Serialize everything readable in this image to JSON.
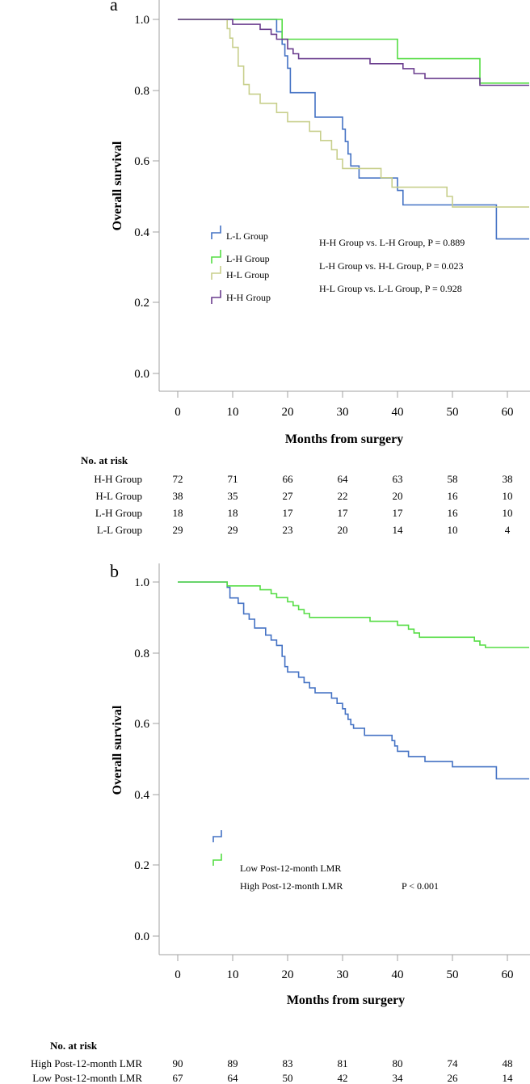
{
  "chart_data": [
    {
      "type": "line",
      "panel_label": "a",
      "xlabel": "Months from surgery",
      "ylabel": "Overall survival",
      "xlim": [
        -5,
        64
      ],
      "ylim": [
        -0.05,
        1.05
      ],
      "x_ticks": [
        0,
        10,
        20,
        30,
        40,
        50,
        60
      ],
      "x_tick_labels": [
        "0",
        "10",
        "20",
        "30",
        "40",
        "50",
        "60"
      ],
      "y_ticks": [
        0.0,
        0.2,
        0.4,
        0.6,
        0.8,
        1.0
      ],
      "y_tick_labels": [
        "0.0",
        "0.2",
        "0.4",
        "0.6",
        "0.8",
        "1.0"
      ],
      "series": [
        {
          "name": "L-L Group",
          "color": "#4472c4",
          "steps": [
            [
              0,
              1.0
            ],
            [
              18,
              0.965
            ],
            [
              19,
              0.93
            ],
            [
              19.5,
              0.897
            ],
            [
              20,
              0.862
            ],
            [
              20.5,
              0.793
            ],
            [
              25,
              0.724
            ],
            [
              30,
              0.69
            ],
            [
              30.5,
              0.655
            ],
            [
              31,
              0.62
            ],
            [
              31.5,
              0.586
            ],
            [
              33,
              0.552
            ],
            [
              40,
              0.517
            ],
            [
              41,
              0.476
            ],
            [
              58,
              0.38
            ],
            [
              64,
              0.38
            ]
          ]
        },
        {
          "name": "L-H Group",
          "color": "#55dd44",
          "steps": [
            [
              0,
              1.0
            ],
            [
              19,
              0.944
            ],
            [
              40,
              0.889
            ],
            [
              55,
              0.82
            ],
            [
              64,
              0.82
            ]
          ]
        },
        {
          "name": "H-L Group",
          "color": "#c8cf8c",
          "steps": [
            [
              0,
              1.0
            ],
            [
              9,
              0.974
            ],
            [
              9.5,
              0.947
            ],
            [
              10,
              0.921
            ],
            [
              11,
              0.868
            ],
            [
              12,
              0.816
            ],
            [
              13,
              0.789
            ],
            [
              15,
              0.763
            ],
            [
              18,
              0.737
            ],
            [
              20,
              0.711
            ],
            [
              24,
              0.684
            ],
            [
              26,
              0.658
            ],
            [
              28,
              0.632
            ],
            [
              29,
              0.605
            ],
            [
              30,
              0.579
            ],
            [
              37,
              0.553
            ],
            [
              39,
              0.526
            ],
            [
              41,
              0.526
            ],
            [
              49,
              0.5
            ],
            [
              50,
              0.47
            ],
            [
              64,
              0.47
            ]
          ]
        },
        {
          "name": "H-H Group",
          "color": "#6a3d8e",
          "steps": [
            [
              0,
              1.0
            ],
            [
              10,
              0.986
            ],
            [
              15,
              0.972
            ],
            [
              17,
              0.958
            ],
            [
              18,
              0.944
            ],
            [
              20,
              0.917
            ],
            [
              21,
              0.903
            ],
            [
              22,
              0.889
            ],
            [
              35,
              0.875
            ],
            [
              41,
              0.861
            ],
            [
              43,
              0.847
            ],
            [
              45,
              0.833
            ],
            [
              55,
              0.814
            ],
            [
              64,
              0.814
            ]
          ]
        }
      ],
      "legend": [
        "L-L Group",
        "L-H Group",
        "H-L Group",
        "H-H Group"
      ],
      "annotations": [
        "H-H Group vs. L-H Group, P = 0.889",
        "L-H Group vs. H-L Group, P = 0.023",
        "H-L Group vs. L-L Group, P = 0.928"
      ],
      "risk_table": {
        "title": "No. at risk",
        "rows": [
          {
            "label": "H-H Group",
            "values": [
              "72",
              "71",
              "66",
              "64",
              "63",
              "58",
              "38"
            ]
          },
          {
            "label": "H-L Group",
            "values": [
              "38",
              "35",
              "27",
              "22",
              "20",
              "16",
              "10"
            ]
          },
          {
            "label": "L-H Group",
            "values": [
              "18",
              "18",
              "17",
              "17",
              "17",
              "16",
              "10"
            ]
          },
          {
            "label": "L-L Group",
            "values": [
              "29",
              "29",
              "23",
              "20",
              "14",
              "10",
              "4"
            ]
          }
        ]
      }
    },
    {
      "type": "line",
      "panel_label": "b",
      "xlabel": "Months from surgery",
      "ylabel": "Overall survival",
      "xlim": [
        -5,
        64
      ],
      "ylim": [
        -0.05,
        1.05
      ],
      "x_ticks": [
        0,
        10,
        20,
        30,
        40,
        50,
        60
      ],
      "x_tick_labels": [
        "0",
        "10",
        "20",
        "30",
        "40",
        "50",
        "60"
      ],
      "y_ticks": [
        0.0,
        0.2,
        0.4,
        0.6,
        0.8,
        1.0
      ],
      "y_tick_labels": [
        "0.0",
        "0.2",
        "0.4",
        "0.6",
        "0.8",
        "1.0"
      ],
      "series": [
        {
          "name": "Low Post-12-month  LMR",
          "color": "#4472c4",
          "steps": [
            [
              0,
              1.0
            ],
            [
              9,
              0.985
            ],
            [
              9.5,
              0.955
            ],
            [
              11,
              0.94
            ],
            [
              12,
              0.91
            ],
            [
              13,
              0.895
            ],
            [
              14,
              0.87
            ],
            [
              16,
              0.85
            ],
            [
              17,
              0.836
            ],
            [
              18,
              0.821
            ],
            [
              19,
              0.79
            ],
            [
              19.5,
              0.761
            ],
            [
              20,
              0.746
            ],
            [
              22,
              0.731
            ],
            [
              23,
              0.716
            ],
            [
              24,
              0.701
            ],
            [
              25,
              0.687
            ],
            [
              28,
              0.672
            ],
            [
              29,
              0.657
            ],
            [
              30,
              0.642
            ],
            [
              30.5,
              0.627
            ],
            [
              31,
              0.612
            ],
            [
              31.5,
              0.597
            ],
            [
              32,
              0.587
            ],
            [
              34,
              0.567
            ],
            [
              39,
              0.552
            ],
            [
              39.5,
              0.537
            ],
            [
              40,
              0.522
            ],
            [
              42,
              0.507
            ],
            [
              45,
              0.493
            ],
            [
              50,
              0.478
            ],
            [
              58,
              0.444
            ],
            [
              64,
              0.444
            ]
          ]
        },
        {
          "name": "High Post-12-month  LMR",
          "color": "#55dd44",
          "steps": [
            [
              0,
              1.0
            ],
            [
              9,
              0.989
            ],
            [
              15,
              0.978
            ],
            [
              17,
              0.967
            ],
            [
              18,
              0.956
            ],
            [
              20,
              0.944
            ],
            [
              21,
              0.933
            ],
            [
              22,
              0.922
            ],
            [
              23,
              0.911
            ],
            [
              24,
              0.9
            ],
            [
              35,
              0.889
            ],
            [
              40,
              0.878
            ],
            [
              42,
              0.867
            ],
            [
              43,
              0.856
            ],
            [
              44,
              0.844
            ],
            [
              46,
              0.844
            ],
            [
              54,
              0.833
            ],
            [
              55,
              0.822
            ],
            [
              56,
              0.815
            ],
            [
              64,
              0.815
            ]
          ]
        }
      ],
      "legend": [
        "Low Post-12-month  LMR",
        "High Post-12-month  LMR"
      ],
      "annotations": [
        "P < 0.001"
      ],
      "risk_table": {
        "title": "No. at risk",
        "rows": [
          {
            "label": "High Post-12-month  LMR",
            "values": [
              "90",
              "89",
              "83",
              "81",
              "80",
              "74",
              "48"
            ]
          },
          {
            "label": "Low Post-12-month  LMR",
            "values": [
              "67",
              "64",
              "50",
              "42",
              "34",
              "26",
              "14"
            ]
          }
        ]
      }
    }
  ]
}
